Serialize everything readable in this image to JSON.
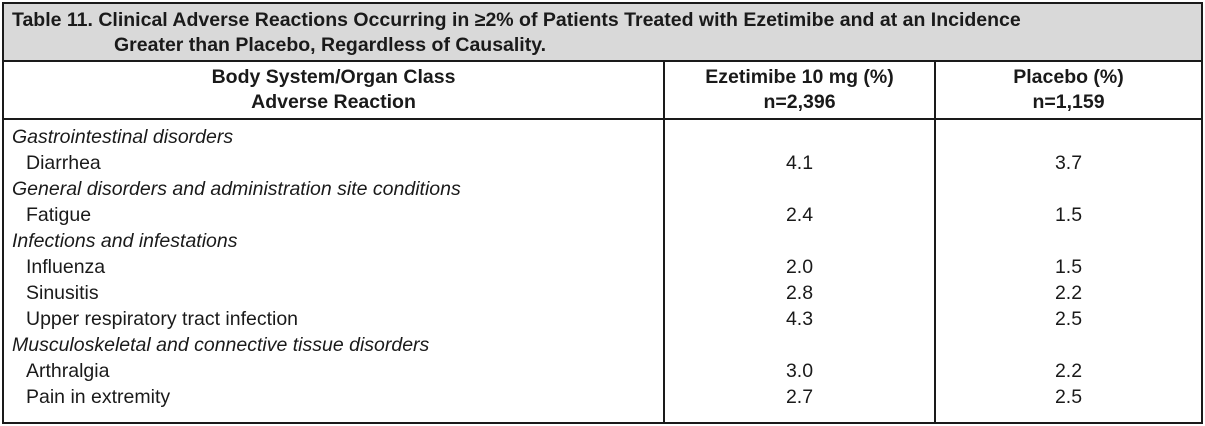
{
  "caption": {
    "line1": "Table 11. Clinical Adverse Reactions Occurring in ≥2% of Patients Treated with Ezetimibe and at an Incidence",
    "line2": "Greater than Placebo, Regardless of Causality."
  },
  "headers": {
    "col1": [
      "Body System/Organ Class",
      "Adverse Reaction"
    ],
    "col2": [
      "Ezetimibe 10 mg (%)",
      "n=2,396"
    ],
    "col3": [
      "Placebo (%)",
      "n=1,159"
    ]
  },
  "groups": [
    {
      "name": "Gastrointestinal disorders",
      "rows": [
        {
          "reaction": "Diarrhea",
          "ezetimibe": "4.1",
          "placebo": "3.7"
        }
      ]
    },
    {
      "name": "General disorders and administration site conditions",
      "rows": [
        {
          "reaction": "Fatigue",
          "ezetimibe": "2.4",
          "placebo": "1.5"
        }
      ]
    },
    {
      "name": "Infections and infestations",
      "rows": [
        {
          "reaction": "Influenza",
          "ezetimibe": "2.0",
          "placebo": "1.5"
        },
        {
          "reaction": "Sinusitis",
          "ezetimibe": "2.8",
          "placebo": "2.2"
        },
        {
          "reaction": "Upper respiratory tract infection",
          "ezetimibe": "4.3",
          "placebo": "2.5"
        }
      ]
    },
    {
      "name": "Musculoskeletal and connective tissue disorders",
      "rows": [
        {
          "reaction": "Arthralgia",
          "ezetimibe": "3.0",
          "placebo": "2.2"
        },
        {
          "reaction": "Pain in extremity",
          "ezetimibe": "2.7",
          "placebo": "2.5"
        }
      ]
    }
  ]
}
